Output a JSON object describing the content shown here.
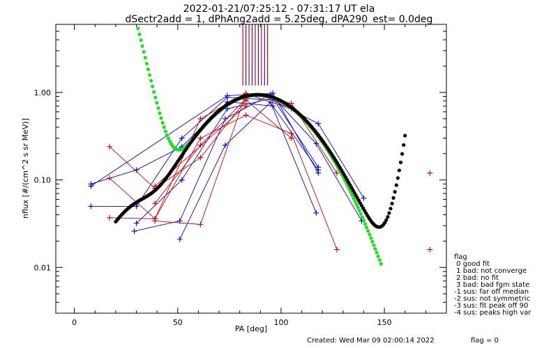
{
  "chart_data": {
    "type": "scatter",
    "title": "2022-01-21/07:25:12 - 07:31:17 UT ela",
    "subtitle": "dSectr2add = 1, dPhAng2add = 5.25deg, dPA290_est=   0.0deg",
    "xlabel": "PA [deg]",
    "ylabel": "nflux [#/(cm^2 s sr MeV)]",
    "xlim": [
      -9,
      180
    ],
    "ylim": [
      0.003,
      6
    ],
    "y_scale": "log",
    "grid": false,
    "x_ticks": [
      0,
      50,
      100,
      150
    ],
    "y_ticks": [
      0.01,
      0.1,
      1.0
    ],
    "y_tick_labels": [
      "0.01",
      "0.10",
      "1.00"
    ],
    "sector_marks": {
      "y_range": [
        1.2,
        6
      ],
      "lines": [
        {
          "x": 81.5,
          "color": "#cc0000"
        },
        {
          "x": 83.0,
          "color": "#1a1aaa"
        },
        {
          "x": 84.5,
          "color": "#cc0000"
        },
        {
          "x": 86.0,
          "color": "#1a1aaa"
        },
        {
          "x": 87.5,
          "color": "#cc0000"
        },
        {
          "x": 89.0,
          "color": "#1a1aaa"
        },
        {
          "x": 90.5,
          "color": "#cc0000"
        },
        {
          "x": 92.0,
          "color": "#1a1aaa"
        },
        {
          "x": 93.5,
          "color": "#cc0000"
        }
      ]
    },
    "series": [
      {
        "color": "#0000cc",
        "x": [
          8,
          30,
          52,
          74,
          96,
          118,
          140
        ],
        "y": [
          0.05,
          0.05,
          0.3,
          0.88,
          0.82,
          0.44,
          0.062
        ]
      },
      {
        "color": "#0000cc",
        "x": [
          29,
          51,
          73,
          95,
          117,
          139
        ],
        "y": [
          0.026,
          0.034,
          0.5,
          0.95,
          0.26,
          0.034
        ]
      },
      {
        "color": "#0000cc",
        "x": [
          8,
          30,
          52,
          74,
          96,
          118
        ],
        "y": [
          0.09,
          0.13,
          0.24,
          0.78,
          0.7,
          0.13
        ]
      },
      {
        "color": "#0000cc",
        "x": [
          51,
          73,
          95,
          117
        ],
        "y": [
          0.021,
          0.25,
          0.77,
          0.042
        ]
      },
      {
        "color": "#0000cc",
        "x": [
          30,
          52,
          74,
          96,
          118
        ],
        "y": [
          0.032,
          0.1,
          0.65,
          0.86,
          0.14
        ]
      },
      {
        "color": "#0000cc",
        "x": [
          8,
          74,
          96,
          118
        ],
        "y": [
          0.085,
          0.92,
          0.98,
          0.12
        ]
      },
      {
        "color": "#cc0000",
        "x": [
          17,
          39,
          61,
          83,
          105,
          127
        ],
        "y": [
          0.037,
          0.036,
          0.5,
          0.98,
          0.75,
          0.12
        ]
      },
      {
        "color": "#cc0000",
        "x": [
          17,
          39,
          61,
          83,
          105
        ],
        "y": [
          0.24,
          0.08,
          0.18,
          0.82,
          0.3
        ]
      },
      {
        "color": "#cc0000",
        "x": [
          17,
          39,
          61,
          83,
          105,
          127
        ],
        "y": [
          0.105,
          0.036,
          0.3,
          0.55,
          0.34,
          0.016
        ]
      },
      {
        "color": "#cc0000",
        "x": [
          39,
          61,
          83,
          105
        ],
        "y": [
          0.034,
          0.031,
          0.96,
          0.65
        ]
      },
      {
        "color": "#cc0000",
        "x": [
          39,
          61,
          83
        ],
        "y": [
          0.054,
          0.25,
          0.85
        ]
      },
      {
        "color": "#cc0000",
        "x": [
          39,
          83
        ],
        "y": [
          0.085,
          0.7
        ]
      }
    ],
    "extra_points": [
      {
        "color": "#cc0000",
        "x": 172,
        "y": 0.12
      },
      {
        "color": "#cc0000",
        "x": 172,
        "y": 0.016
      }
    ],
    "fits": [
      {
        "color": "#22dd22",
        "kind": "green_fit",
        "x_range": [
          21,
          149
        ]
      },
      {
        "color": "#000000",
        "kind": "black_fit",
        "x_range": [
          20,
          160
        ]
      }
    ]
  },
  "legend": {
    "title": "flag",
    "items": [
      " 0 good fit",
      " 1 bad: not converge",
      " 2 bad: no fit",
      " 3 bad: bad fgm state",
      "-1 sus: far off median",
      "-2 sus: not symmetric",
      "-3 sus: fit peak off 90",
      "-4 sus: peaks high var"
    ]
  },
  "footer": {
    "created": "Created: Wed Mar 09 02:00:14 2022",
    "flag": "flag = 0"
  }
}
